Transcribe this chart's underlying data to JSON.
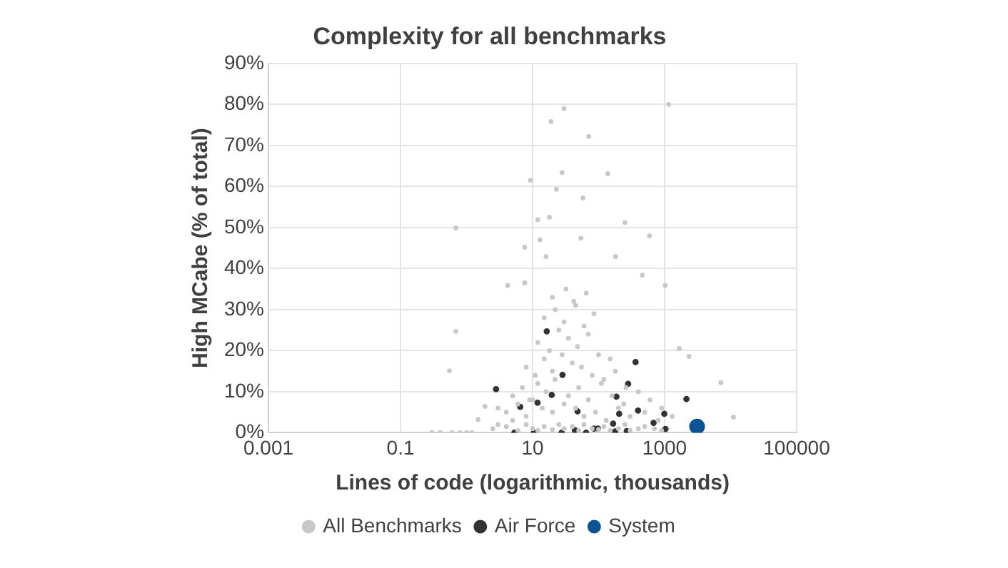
{
  "chart_data": {
    "type": "scatter",
    "title": "Complexity for all benchmarks",
    "xlabel": "Lines of code (logarithmic, thousands)",
    "ylabel": "High MCabe (% of total)",
    "log": "x",
    "grid": true,
    "legend": "bottom",
    "marker": "circle",
    "xlim": [
      0.001,
      100000
    ],
    "xticks": [
      0.001,
      0.1,
      10,
      1000,
      100000
    ],
    "ylim": [
      0,
      90
    ],
    "yticks": [
      {
        "value": 0,
        "label": "0%"
      },
      {
        "value": 10,
        "label": "10%"
      },
      {
        "value": 20,
        "label": "20%"
      },
      {
        "value": 30,
        "label": "30%"
      },
      {
        "value": 40,
        "label": "40%"
      },
      {
        "value": 50,
        "label": "50%"
      },
      {
        "value": 60,
        "label": "60%"
      },
      {
        "value": 70,
        "label": "70%"
      },
      {
        "value": 80,
        "label": "80%"
      },
      {
        "value": 90,
        "label": "90%"
      }
    ],
    "series": [
      {
        "name": "All Benchmarks",
        "color": "#c8c8c8",
        "x": [
          30,
          19,
          71,
          1150,
          9.3,
          28,
          138,
          23,
          58,
          0.69,
          0.69,
          0.55,
          12,
          18,
          250,
          590,
          13,
          54,
          7.6,
          16,
          180,
          7.6,
          4.2,
          460,
          1020,
          1660,
          2340,
          7100,
          11000,
          1.9,
          1.5,
          0.3,
          0.4,
          0.6,
          0.8,
          1.0,
          1.2,
          2.5,
          3,
          4,
          5,
          6,
          8,
          10,
          12,
          15,
          20,
          25,
          30,
          40,
          50,
          60,
          80,
          100,
          120,
          150,
          200,
          250,
          300,
          400,
          500,
          700,
          900,
          3,
          4,
          6,
          8,
          10,
          14,
          20,
          30,
          45,
          60,
          90,
          130,
          200,
          300,
          500,
          800,
          1300,
          5,
          7,
          9,
          12,
          16,
          22,
          35,
          50,
          70,
          110,
          160,
          240,
          400,
          600,
          900,
          8,
          11,
          15,
          20,
          28,
          40,
          55,
          80,
          120,
          180,
          260,
          12,
          18,
          25,
          35,
          48,
          70,
          100,
          150,
          15,
          22,
          30,
          42,
          60,
          85,
          20,
          32,
          45,
          65
        ],
        "values": [
          79,
          75.8,
          72.2,
          80,
          61.5,
          63.4,
          63.1,
          59.3,
          57.2,
          49.9,
          24.7,
          15.1,
          51.9,
          52.5,
          51.2,
          48,
          47,
          47.4,
          45.2,
          42.9,
          42.9,
          36.5,
          35.9,
          38.4,
          35.9,
          20.5,
          18.6,
          12.2,
          3.8,
          6.4,
          3.2,
          0,
          0,
          0,
          0,
          0,
          0,
          1,
          2,
          1.5,
          3,
          0.5,
          2,
          1,
          0.5,
          1.5,
          0.8,
          2,
          1,
          1.5,
          0.5,
          2,
          1,
          0.8,
          1.5,
          0.5,
          1,
          2,
          0.5,
          1,
          1.5,
          1,
          0.5,
          6,
          5,
          7,
          4,
          8,
          6,
          5,
          7,
          6,
          4,
          5,
          3,
          6,
          4,
          5,
          3,
          4,
          9,
          11,
          8,
          12,
          10,
          13,
          9,
          11,
          8,
          12,
          9,
          7,
          10,
          8,
          6,
          16,
          14,
          18,
          15,
          19,
          17,
          16,
          14,
          13,
          15,
          11,
          22,
          20,
          25,
          23,
          21,
          24,
          19,
          18,
          28,
          30,
          27,
          32,
          26,
          29,
          33,
          35,
          31,
          34
        ]
      },
      {
        "name": "Air Force",
        "color": "#333333",
        "x": [
          16.4,
          2.8,
          6.5,
          11.9,
          19.5,
          28.4,
          48,
          5.3,
          10.5,
          27.5,
          43.7,
          64.6,
          85,
          98,
          166,
          178,
          186,
          205,
          267,
          280,
          363,
          396,
          680,
          990,
          1030,
          2140
        ],
        "values": [
          24.7,
          10.6,
          6.3,
          7.3,
          9.2,
          14.1,
          5.2,
          0,
          0,
          0,
          0.6,
          0,
          1,
          1,
          2.2,
          0.3,
          8.8,
          4.6,
          0.4,
          11.9,
          17.2,
          5.4,
          2.4,
          4.6,
          0.9,
          8.2
        ]
      },
      {
        "name": "System",
        "color": "#0b5394",
        "x": [
          3100
        ],
        "values": [
          1.5
        ]
      }
    ]
  }
}
